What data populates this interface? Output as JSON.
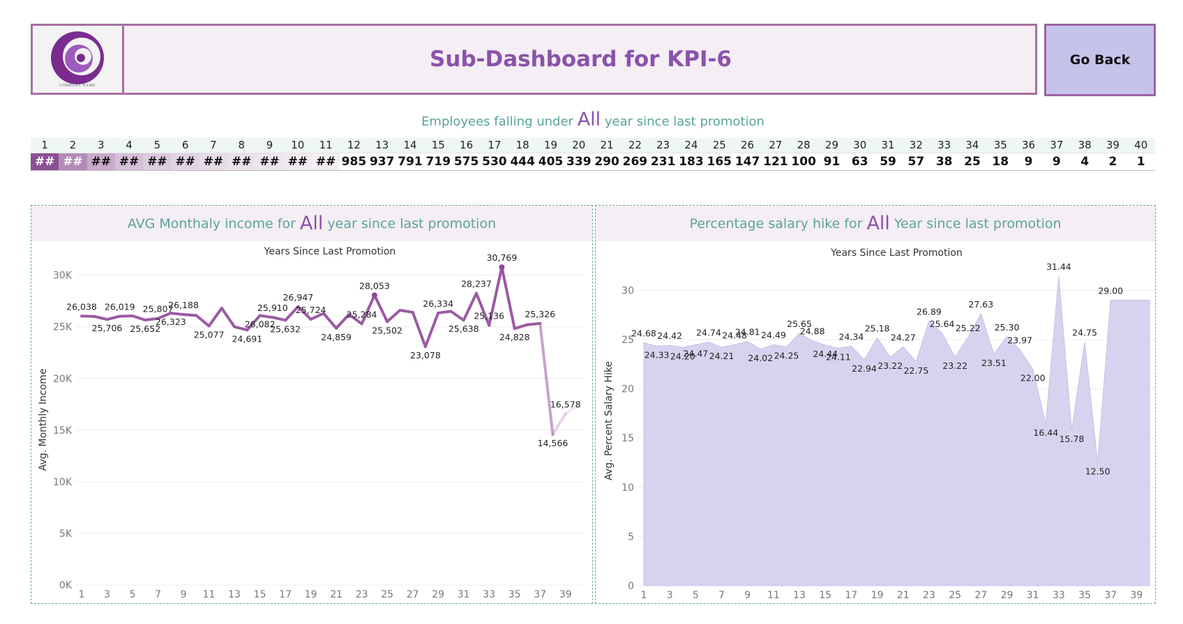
{
  "header": {
    "logo_caption": "COMPANY NAME",
    "title": "Sub-Dashboard for KPI-6",
    "go_back_label": "Go Back"
  },
  "summary": {
    "prefix": "Employees falling under",
    "highlight": "All",
    "suffix": "year since last promotion",
    "years": [
      "1",
      "2",
      "3",
      "4",
      "5",
      "6",
      "7",
      "8",
      "9",
      "10",
      "11",
      "12",
      "13",
      "14",
      "15",
      "16",
      "17",
      "18",
      "19",
      "20",
      "21",
      "22",
      "23",
      "24",
      "25",
      "26",
      "27",
      "28",
      "29",
      "30",
      "31",
      "32",
      "33",
      "34",
      "35",
      "36",
      "37",
      "38",
      "39",
      "40"
    ],
    "counts": [
      "##",
      "##",
      "##",
      "##",
      "##",
      "##",
      "##",
      "##",
      "##",
      "##",
      "##",
      "985",
      "937",
      "791",
      "719",
      "575",
      "530",
      "444",
      "405",
      "339",
      "290",
      "269",
      "231",
      "183",
      "165",
      "147",
      "121",
      "100",
      "91",
      "63",
      "59",
      "57",
      "38",
      "25",
      "18",
      "9",
      "9",
      "4",
      "2",
      "1"
    ]
  },
  "colors": {
    "accent_purple": "#8b52ab",
    "teal_text": "#5aa39c",
    "header_bg": "#f5eef4",
    "button_bg": "#c6c3ea",
    "line_purple": "#9b5aa3",
    "area_fill": "#d7d3ef"
  },
  "chart_data": [
    {
      "type": "line",
      "panel_title": {
        "prefix": "AVG Monthaly income for",
        "highlight": "All",
        "suffix": "year since last promotion"
      },
      "title": "Years Since Last Promotion",
      "xlabel": "",
      "ylabel": "Avg. Monthly Income",
      "ylim": [
        0,
        32000
      ],
      "yticks": [
        0,
        5000,
        10000,
        15000,
        20000,
        25000,
        30000
      ],
      "ytick_labels": [
        "0K",
        "5K",
        "10K",
        "15K",
        "20K",
        "25K",
        "30K"
      ],
      "xticks": [
        1,
        3,
        5,
        7,
        9,
        11,
        13,
        15,
        17,
        19,
        21,
        23,
        25,
        27,
        29,
        31,
        33,
        35,
        37,
        39
      ],
      "x": [
        1,
        2,
        3,
        4,
        5,
        6,
        7,
        8,
        9,
        10,
        11,
        12,
        13,
        14,
        15,
        16,
        17,
        18,
        19,
        20,
        21,
        22,
        23,
        24,
        25,
        26,
        27,
        28,
        29,
        30,
        31,
        32,
        33,
        34,
        35,
        36,
        37,
        38,
        39,
        40
      ],
      "values": [
        26038,
        26000,
        25706,
        26019,
        26050,
        25652,
        25807,
        26323,
        26188,
        26100,
        25077,
        26800,
        25000,
        24691,
        26082,
        25910,
        25632,
        26947,
        25724,
        26300,
        24859,
        26200,
        25284,
        28053,
        25502,
        26600,
        26400,
        23078,
        26334,
        26500,
        25638,
        28237,
        25136,
        30769,
        24828,
        25200,
        25326,
        14566,
        16578,
        17400
      ],
      "labels": [
        {
          "i": 0,
          "text": "26,038",
          "pos": "above"
        },
        {
          "i": 2,
          "text": "25,706",
          "pos": "below"
        },
        {
          "i": 3,
          "text": "26,019",
          "pos": "above"
        },
        {
          "i": 5,
          "text": "25,652",
          "pos": "below"
        },
        {
          "i": 6,
          "text": "25,807",
          "pos": "above"
        },
        {
          "i": 7,
          "text": "26,323",
          "pos": "below"
        },
        {
          "i": 8,
          "text": "26,188",
          "pos": "above"
        },
        {
          "i": 10,
          "text": "25,077",
          "pos": "below"
        },
        {
          "i": 13,
          "text": "24,691",
          "pos": "below"
        },
        {
          "i": 14,
          "text": "26,082",
          "pos": "below"
        },
        {
          "i": 15,
          "text": "25,910",
          "pos": "above"
        },
        {
          "i": 16,
          "text": "25,632",
          "pos": "below"
        },
        {
          "i": 17,
          "text": "26,947",
          "pos": "above"
        },
        {
          "i": 18,
          "text": "25,724",
          "pos": "above"
        },
        {
          "i": 20,
          "text": "24,859",
          "pos": "below"
        },
        {
          "i": 22,
          "text": "25,284",
          "pos": "above"
        },
        {
          "i": 23,
          "text": "28,053",
          "pos": "above"
        },
        {
          "i": 24,
          "text": "25,502",
          "pos": "below"
        },
        {
          "i": 27,
          "text": "23,078",
          "pos": "below"
        },
        {
          "i": 28,
          "text": "26,334",
          "pos": "above"
        },
        {
          "i": 30,
          "text": "25,638",
          "pos": "below"
        },
        {
          "i": 31,
          "text": "28,237",
          "pos": "above"
        },
        {
          "i": 32,
          "text": "25,136",
          "pos": "above"
        },
        {
          "i": 33,
          "text": "30,769",
          "pos": "above"
        },
        {
          "i": 34,
          "text": "24,828",
          "pos": "below"
        },
        {
          "i": 36,
          "text": "25,326",
          "pos": "above"
        },
        {
          "i": 37,
          "text": "14,566",
          "pos": "below"
        },
        {
          "i": 38,
          "text": "16,578",
          "pos": "above"
        }
      ]
    },
    {
      "type": "area",
      "panel_title": {
        "prefix": "Percentage salary hike for",
        "highlight": "All",
        "suffix": "Year since last promotion"
      },
      "title": "Years Since Last Promotion",
      "xlabel": "",
      "ylabel": "Avg. Percent Salary Hike",
      "ylim": [
        0,
        33.5
      ],
      "yticks": [
        0,
        5,
        10,
        15,
        20,
        25,
        30
      ],
      "ytick_labels": [
        "0",
        "5",
        "10",
        "15",
        "20",
        "25",
        "30"
      ],
      "xticks": [
        1,
        3,
        5,
        7,
        9,
        11,
        13,
        15,
        17,
        19,
        21,
        23,
        25,
        27,
        29,
        31,
        33,
        35,
        37,
        39
      ],
      "x": [
        1,
        2,
        3,
        4,
        5,
        6,
        7,
        8,
        9,
        10,
        11,
        12,
        13,
        14,
        15,
        16,
        17,
        18,
        19,
        20,
        21,
        22,
        23,
        24,
        25,
        26,
        27,
        28,
        29,
        30,
        31,
        32,
        33,
        34,
        35,
        36,
        37,
        38,
        39,
        40
      ],
      "values": [
        24.68,
        24.33,
        24.42,
        24.2,
        24.47,
        24.74,
        24.21,
        24.48,
        24.81,
        24.02,
        24.49,
        24.25,
        25.65,
        24.88,
        24.44,
        24.11,
        24.34,
        22.94,
        25.18,
        23.22,
        24.27,
        22.75,
        26.89,
        25.64,
        23.22,
        25.22,
        27.63,
        23.51,
        25.3,
        23.97,
        22.0,
        16.44,
        31.44,
        15.78,
        24.75,
        12.5,
        29.0,
        29.0,
        29.0,
        29.0
      ],
      "labels": [
        {
          "i": 0,
          "text": "24.68",
          "pos": "above"
        },
        {
          "i": 1,
          "text": "24.33",
          "pos": "below"
        },
        {
          "i": 2,
          "text": "24.42",
          "pos": "above"
        },
        {
          "i": 3,
          "text": "24.20",
          "pos": "below"
        },
        {
          "i": 4,
          "text": "24.47",
          "pos": "below"
        },
        {
          "i": 5,
          "text": "24.74",
          "pos": "above"
        },
        {
          "i": 6,
          "text": "24.21",
          "pos": "below"
        },
        {
          "i": 7,
          "text": "24.48",
          "pos": "above"
        },
        {
          "i": 8,
          "text": "24.81",
          "pos": "above"
        },
        {
          "i": 9,
          "text": "24.02",
          "pos": "below"
        },
        {
          "i": 10,
          "text": "24.49",
          "pos": "above"
        },
        {
          "i": 11,
          "text": "24.25",
          "pos": "below"
        },
        {
          "i": 12,
          "text": "25.65",
          "pos": "above"
        },
        {
          "i": 13,
          "text": "24.88",
          "pos": "above"
        },
        {
          "i": 14,
          "text": "24.44",
          "pos": "below"
        },
        {
          "i": 15,
          "text": "24.11",
          "pos": "below"
        },
        {
          "i": 16,
          "text": "24.34",
          "pos": "above"
        },
        {
          "i": 17,
          "text": "22.94",
          "pos": "below"
        },
        {
          "i": 18,
          "text": "25.18",
          "pos": "above"
        },
        {
          "i": 19,
          "text": "23.22",
          "pos": "below"
        },
        {
          "i": 20,
          "text": "24.27",
          "pos": "above"
        },
        {
          "i": 21,
          "text": "22.75",
          "pos": "below"
        },
        {
          "i": 22,
          "text": "26.89",
          "pos": "above"
        },
        {
          "i": 23,
          "text": "25.64",
          "pos": "above"
        },
        {
          "i": 24,
          "text": "23.22",
          "pos": "below"
        },
        {
          "i": 25,
          "text": "25.22",
          "pos": "above"
        },
        {
          "i": 26,
          "text": "27.63",
          "pos": "above"
        },
        {
          "i": 27,
          "text": "23.51",
          "pos": "below"
        },
        {
          "i": 28,
          "text": "25.30",
          "pos": "above"
        },
        {
          "i": 29,
          "text": "23.97",
          "pos": "above"
        },
        {
          "i": 30,
          "text": "22.00",
          "pos": "below"
        },
        {
          "i": 31,
          "text": "16.44",
          "pos": "below"
        },
        {
          "i": 32,
          "text": "31.44",
          "pos": "above"
        },
        {
          "i": 33,
          "text": "15.78",
          "pos": "below"
        },
        {
          "i": 34,
          "text": "24.75",
          "pos": "above"
        },
        {
          "i": 35,
          "text": "12.50",
          "pos": "below"
        },
        {
          "i": 36,
          "text": "29.00",
          "pos": "above"
        }
      ]
    }
  ]
}
